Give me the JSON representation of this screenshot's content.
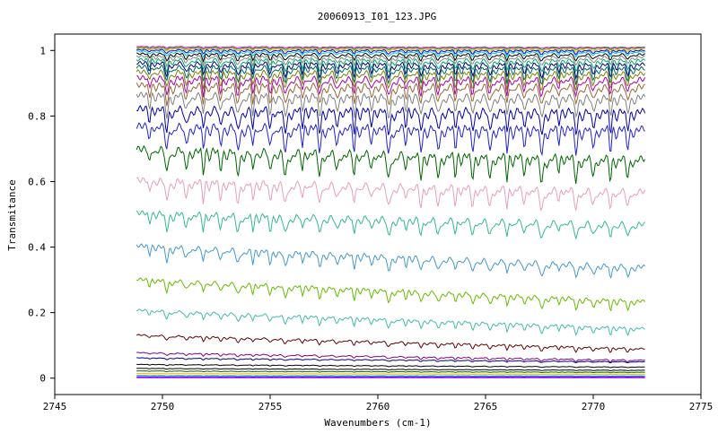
{
  "chart_data": {
    "type": "line",
    "title": "20060913_I01_123.JPG",
    "xlabel": "Wavenumbers (cm-1)",
    "ylabel": "Transmitance",
    "xlim": [
      2745,
      2775
    ],
    "ylim": [
      -0.05,
      1.05
    ],
    "x_range": [
      2748.8,
      2772.4
    ],
    "x_ticks": [
      2745,
      2750,
      2755,
      2760,
      2765,
      2770,
      2775
    ],
    "x_tick_labels": [
      "2745",
      "2750",
      "2755",
      "2760",
      "2765",
      "2770",
      "2775"
    ],
    "y_ticks": [
      0,
      0.2,
      0.4,
      0.6,
      0.8,
      1
    ],
    "y_tick_labels": [
      "0",
      "0.2",
      "0.4",
      "0.6",
      "0.8",
      "1"
    ],
    "grid": false,
    "legend": "none",
    "absorption_line_positions": [
      2749.4,
      2750.2,
      2751.1,
      2751.9,
      2752.7,
      2753.5,
      2754.2,
      2755.0,
      2755.7,
      2756.5,
      2757.3,
      2758.1,
      2758.9,
      2759.7,
      2760.5,
      2761.3,
      2762.0,
      2762.8,
      2763.6,
      2764.4,
      2765.2,
      2766.0,
      2766.8,
      2767.6,
      2768.4,
      2769.2,
      2770.0,
      2770.8,
      2771.6
    ],
    "series": [
      {
        "start": 1.012,
        "end": 1.01,
        "depth": 0.004,
        "color": "#ff00ff"
      },
      {
        "start": 1.009,
        "end": 1.008,
        "depth": 0.006,
        "color": "#00aa00"
      },
      {
        "start": 1.006,
        "end": 1.004,
        "depth": 0.008,
        "color": "#ffaa00"
      },
      {
        "start": 1.002,
        "end": 1.0,
        "depth": 0.012,
        "color": "#0000ff"
      },
      {
        "start": 0.997,
        "end": 0.996,
        "depth": 0.016,
        "color": "#00cccc"
      },
      {
        "start": 0.99,
        "end": 0.988,
        "depth": 0.022,
        "color": "#000000"
      },
      {
        "start": 0.982,
        "end": 0.98,
        "depth": 0.028,
        "color": "#888888"
      },
      {
        "start": 0.972,
        "end": 0.97,
        "depth": 0.035,
        "color": "#00aa66"
      },
      {
        "start": 0.962,
        "end": 0.958,
        "depth": 0.04,
        "color": "#000080"
      },
      {
        "start": 0.95,
        "end": 0.945,
        "depth": 0.045,
        "color": "#006666"
      },
      {
        "start": 0.935,
        "end": 0.93,
        "depth": 0.05,
        "color": "#808000"
      },
      {
        "start": 0.917,
        "end": 0.912,
        "depth": 0.055,
        "color": "#aa00aa"
      },
      {
        "start": 0.895,
        "end": 0.89,
        "depth": 0.06,
        "color": "#996633"
      },
      {
        "start": 0.865,
        "end": 0.858,
        "depth": 0.065,
        "color": "#808080"
      },
      {
        "start": 0.823,
        "end": 0.815,
        "depth": 0.07,
        "color": "#0000aa"
      },
      {
        "start": 0.77,
        "end": 0.762,
        "depth": 0.075,
        "color": "#2222cc"
      },
      {
        "start": 0.7,
        "end": 0.67,
        "depth": 0.075,
        "color": "#006600"
      },
      {
        "start": 0.605,
        "end": 0.57,
        "depth": 0.065,
        "color": "#e8a0b8"
      },
      {
        "start": 0.505,
        "end": 0.47,
        "depth": 0.055,
        "color": "#33bb88"
      },
      {
        "start": 0.405,
        "end": 0.34,
        "depth": 0.045,
        "color": "#4499cc"
      },
      {
        "start": 0.302,
        "end": 0.235,
        "depth": 0.035,
        "color": "#66bb00"
      },
      {
        "start": 0.208,
        "end": 0.152,
        "depth": 0.025,
        "color": "#44bbaa"
      },
      {
        "start": 0.132,
        "end": 0.09,
        "depth": 0.015,
        "color": "#660000"
      },
      {
        "start": 0.078,
        "end": 0.055,
        "depth": 0.008,
        "color": "#880088"
      },
      {
        "start": 0.062,
        "end": 0.05,
        "depth": 0.005,
        "color": "#000088"
      },
      {
        "start": 0.042,
        "end": 0.034,
        "depth": 0.003,
        "color": "#000000"
      },
      {
        "start": 0.03,
        "end": 0.024,
        "depth": 0.002,
        "color": "#000000"
      },
      {
        "start": 0.022,
        "end": 0.018,
        "depth": 0.002,
        "color": "#006600"
      },
      {
        "start": 0.014,
        "end": 0.012,
        "depth": 0.001,
        "color": "#ffaa00"
      },
      {
        "start": 0.008,
        "end": 0.007,
        "depth": 0.001,
        "color": "#00aaaa"
      },
      {
        "start": 0.004,
        "end": 0.004,
        "depth": 0.001,
        "color": "#0000ff"
      },
      {
        "start": 0.001,
        "end": 0.001,
        "depth": 0.0,
        "color": "#ff00ff"
      }
    ]
  }
}
